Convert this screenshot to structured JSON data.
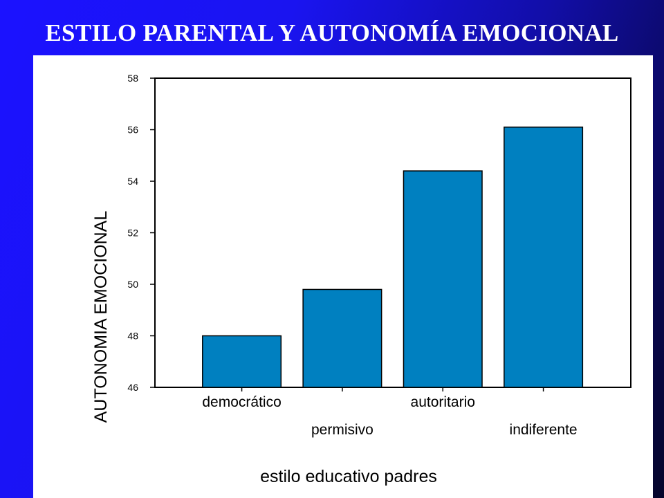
{
  "slide": {
    "title": "ESTILO PARENTAL Y AUTONOMÍA EMOCIONAL"
  },
  "chart_data": {
    "type": "bar",
    "categories": [
      "democrático",
      "permisivo",
      "autoritario",
      "indiferente"
    ],
    "values": [
      48.0,
      49.8,
      54.4,
      56.1
    ],
    "xlabel": "estilo educativo padres",
    "ylabel": "AUTONOMIA EMOCIONAL",
    "ylim": [
      46,
      58
    ],
    "yticks": [
      "46",
      "48",
      "50",
      "52",
      "54",
      "56",
      "58"
    ],
    "bar_color": "#0080C0",
    "grid": false
  }
}
